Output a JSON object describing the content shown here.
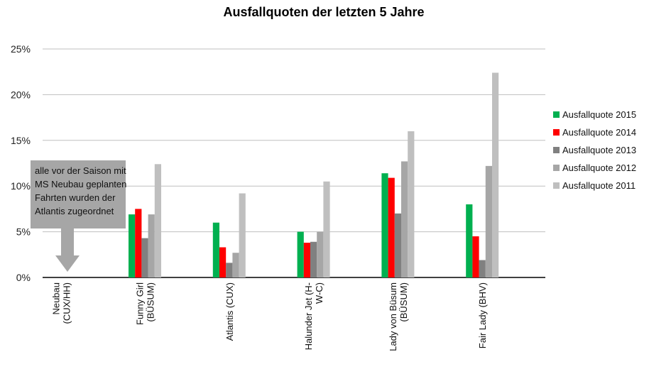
{
  "chart_data": {
    "type": "bar",
    "title": "Ausfallquoten der letzten 5 Jahre",
    "xlabel": "",
    "ylabel": "",
    "ylim": [
      0,
      25
    ],
    "yticks": [
      "0%",
      "5%",
      "10%",
      "15%",
      "20%",
      "25%"
    ],
    "grid": true,
    "legend_position": "right",
    "categories": [
      [
        "Neubau",
        "(CUX/HH)"
      ],
      [
        "Funny Girl",
        "(BÜSUM)"
      ],
      [
        "Atlantis (CUX)"
      ],
      [
        "Halunder Jet (H-",
        "W-C)"
      ],
      [
        "Lady von Büsum",
        "(BÜSUM)"
      ],
      [
        "Fair Lady (BHV)"
      ]
    ],
    "series": [
      {
        "name": "Ausfallquote 2015",
        "color": "#00b050",
        "values": [
          0,
          6.9,
          6.0,
          5.0,
          11.4,
          8.0
        ]
      },
      {
        "name": "Ausfallquote 2014",
        "color": "#ff0000",
        "values": [
          0,
          7.5,
          3.3,
          3.8,
          10.9,
          4.5
        ]
      },
      {
        "name": "Ausfallquote 2013",
        "color": "#808080",
        "values": [
          0,
          4.3,
          1.6,
          3.9,
          7.0,
          1.9
        ]
      },
      {
        "name": "Ausfallquote 2012",
        "color": "#a6a6a6",
        "values": [
          0,
          6.9,
          2.7,
          5.0,
          12.7,
          12.2
        ]
      },
      {
        "name": "Ausfallquote 2011",
        "color": "#bfbfbf",
        "values": [
          0,
          12.4,
          9.2,
          10.5,
          16.0,
          22.4
        ]
      }
    ],
    "annotation": {
      "lines": [
        "alle vor der Saison mit",
        "MS Neubau geplanten",
        "Fahrten wurden der",
        "Atlantis zugeordnet"
      ],
      "color": "#a6a6a6"
    }
  }
}
